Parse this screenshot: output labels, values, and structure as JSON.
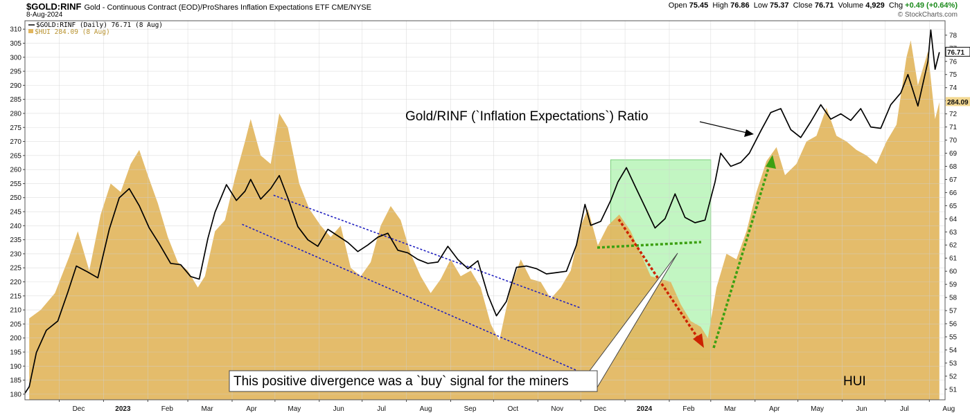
{
  "header": {
    "symbol": "$GOLD:RINF",
    "description": "Gold - Continuous Contract (EOD)/ProShares Inflation Expectations ETF  CME/NYSE",
    "date": "8-Aug-2024",
    "open_label": "Open",
    "open": "75.45",
    "high_label": "High",
    "high": "76.86",
    "low_label": "Low",
    "low": "75.37",
    "close_label": "Close",
    "close": "76.71",
    "volume_label": "Volume",
    "volume": "4,929",
    "chg_label": "Chg",
    "chg": "+0.49 (+0.64%)",
    "brand": "© StockCharts.com"
  },
  "legend": {
    "ratio": "$GOLD:RINF (Daily) 76.71 (8 Aug)",
    "hui": "$HUI 284.09 (8 Aug)"
  },
  "colors": {
    "hui_fill": "#E2B65E",
    "ratio_line": "#000000",
    "channel": "#2020C0",
    "green_box": "#90EE90",
    "green_arrow": "#3CA012",
    "red_arrow": "#CC2200"
  },
  "annotations": {
    "ratio_label": "Gold/RINF (`Inflation Expectations`) Ratio",
    "divergence_label": "This positive divergence was a `buy` signal for the miners",
    "hui_label": "HUI"
  },
  "chart_data": {
    "type": "area",
    "x_tick_labels": [
      "Dec",
      "2023",
      "Feb",
      "Mar",
      "Apr",
      "May",
      "Jun",
      "Jul",
      "Aug",
      "Sep",
      "Oct",
      "Nov",
      "Dec",
      "2024",
      "Feb",
      "Mar",
      "Apr",
      "May",
      "Jun",
      "Jul",
      "Aug"
    ],
    "x_tick_dates": [
      "2022-12-01",
      "2023-01-01",
      "2023-02-01",
      "2023-03-01",
      "2023-04-01",
      "2023-05-01",
      "2023-06-01",
      "2023-07-01",
      "2023-08-01",
      "2023-09-01",
      "2023-10-01",
      "2023-11-01",
      "2023-12-01",
      "2024-01-01",
      "2024-02-01",
      "2024-03-01",
      "2024-04-01",
      "2024-05-01",
      "2024-06-01",
      "2024-07-01",
      "2024-08-01"
    ],
    "x_range": [
      "2022-11-07",
      "2024-08-12"
    ],
    "left_axis": {
      "series": "$HUI",
      "ylim": [
        178,
        313
      ],
      "ticks": [
        180,
        185,
        190,
        195,
        200,
        205,
        210,
        215,
        220,
        225,
        230,
        235,
        240,
        245,
        250,
        255,
        260,
        265,
        270,
        275,
        280,
        285,
        290,
        295,
        300,
        305,
        310
      ]
    },
    "right_axis": {
      "series": "$GOLD:RINF",
      "ylim": [
        50.2,
        79.1
      ],
      "ticks": [
        51,
        52,
        53,
        54,
        55,
        56,
        57,
        58,
        59,
        60,
        61,
        62,
        63,
        64,
        65,
        66,
        67,
        68,
        69,
        70,
        71,
        72,
        73,
        74,
        75,
        76,
        77,
        78
      ]
    },
    "last_values": {
      "ratio": "76.71",
      "hui": "284.09"
    },
    "series": [
      {
        "name": "$HUI",
        "axis": "left",
        "points": [
          [
            "2022-11-10",
            207
          ],
          [
            "2022-11-18",
            210
          ],
          [
            "2022-11-28",
            216
          ],
          [
            "2022-12-08",
            229
          ],
          [
            "2022-12-14",
            238
          ],
          [
            "2022-12-22",
            224
          ],
          [
            "2022-12-30",
            244
          ],
          [
            "2023-01-06",
            255
          ],
          [
            "2023-01-13",
            252
          ],
          [
            "2023-01-20",
            262
          ],
          [
            "2023-01-26",
            267
          ],
          [
            "2023-02-01",
            258
          ],
          [
            "2023-02-08",
            248
          ],
          [
            "2023-02-15",
            236
          ],
          [
            "2023-02-22",
            227
          ],
          [
            "2023-03-01",
            224
          ],
          [
            "2023-03-08",
            218
          ],
          [
            "2023-03-13",
            222
          ],
          [
            "2023-03-20",
            238
          ],
          [
            "2023-03-27",
            242
          ],
          [
            "2023-04-03",
            257
          ],
          [
            "2023-04-10",
            270
          ],
          [
            "2023-04-14",
            278
          ],
          [
            "2023-04-21",
            265
          ],
          [
            "2023-04-28",
            262
          ],
          [
            "2023-05-04",
            280
          ],
          [
            "2023-05-10",
            275
          ],
          [
            "2023-05-18",
            255
          ],
          [
            "2023-05-25",
            246
          ],
          [
            "2023-06-02",
            240
          ],
          [
            "2023-06-09",
            236
          ],
          [
            "2023-06-16",
            240
          ],
          [
            "2023-06-23",
            225
          ],
          [
            "2023-06-30",
            222
          ],
          [
            "2023-07-07",
            227
          ],
          [
            "2023-07-14",
            240
          ],
          [
            "2023-07-21",
            247
          ],
          [
            "2023-07-28",
            242
          ],
          [
            "2023-08-04",
            230
          ],
          [
            "2023-08-11",
            222
          ],
          [
            "2023-08-18",
            216
          ],
          [
            "2023-08-25",
            221
          ],
          [
            "2023-09-01",
            228
          ],
          [
            "2023-09-08",
            222
          ],
          [
            "2023-09-15",
            224
          ],
          [
            "2023-09-22",
            218
          ],
          [
            "2023-09-29",
            205
          ],
          [
            "2023-10-05",
            199
          ],
          [
            "2023-10-13",
            218
          ],
          [
            "2023-10-20",
            228
          ],
          [
            "2023-10-27",
            221
          ],
          [
            "2023-11-03",
            220
          ],
          [
            "2023-11-10",
            214
          ],
          [
            "2023-11-17",
            218
          ],
          [
            "2023-11-24",
            224
          ],
          [
            "2023-12-01",
            240
          ],
          [
            "2023-12-06",
            246
          ],
          [
            "2023-12-13",
            233
          ],
          [
            "2023-12-20",
            240
          ],
          [
            "2023-12-28",
            244
          ],
          [
            "2024-01-05",
            238
          ],
          [
            "2024-01-12",
            230
          ],
          [
            "2024-01-19",
            222
          ],
          [
            "2024-01-26",
            221
          ],
          [
            "2024-02-02",
            220
          ],
          [
            "2024-02-09",
            212
          ],
          [
            "2024-02-16",
            206
          ],
          [
            "2024-02-23",
            204
          ],
          [
            "2024-02-28",
            200
          ],
          [
            "2024-03-05",
            218
          ],
          [
            "2024-03-12",
            230
          ],
          [
            "2024-03-19",
            228
          ],
          [
            "2024-03-26",
            238
          ],
          [
            "2024-04-02",
            252
          ],
          [
            "2024-04-09",
            263
          ],
          [
            "2024-04-16",
            268
          ],
          [
            "2024-04-22",
            258
          ],
          [
            "2024-04-30",
            262
          ],
          [
            "2024-05-07",
            270
          ],
          [
            "2024-05-14",
            272
          ],
          [
            "2024-05-21",
            282
          ],
          [
            "2024-05-28",
            272
          ],
          [
            "2024-06-04",
            270
          ],
          [
            "2024-06-11",
            267
          ],
          [
            "2024-06-18",
            265
          ],
          [
            "2024-06-25",
            262
          ],
          [
            "2024-07-02",
            270
          ],
          [
            "2024-07-09",
            276
          ],
          [
            "2024-07-16",
            300
          ],
          [
            "2024-07-19",
            306
          ],
          [
            "2024-07-24",
            290
          ],
          [
            "2024-07-31",
            302
          ],
          [
            "2024-08-05",
            278
          ],
          [
            "2024-08-08",
            284
          ]
        ]
      },
      {
        "name": "$GOLD:RINF",
        "axis": "right",
        "points": [
          [
            "2022-11-07",
            50.7
          ],
          [
            "2022-11-10",
            51.2
          ],
          [
            "2022-11-15",
            53.8
          ],
          [
            "2022-11-22",
            55.5
          ],
          [
            "2022-11-30",
            56.2
          ],
          [
            "2022-12-07",
            58.4
          ],
          [
            "2022-12-13",
            60.4
          ],
          [
            "2022-12-20",
            60.0
          ],
          [
            "2022-12-28",
            59.5
          ],
          [
            "2023-01-05",
            63.2
          ],
          [
            "2023-01-12",
            65.6
          ],
          [
            "2023-01-19",
            66.3
          ],
          [
            "2023-01-26",
            65.0
          ],
          [
            "2023-02-02",
            63.3
          ],
          [
            "2023-02-09",
            62.1
          ],
          [
            "2023-02-17",
            60.6
          ],
          [
            "2023-02-24",
            60.5
          ],
          [
            "2023-03-03",
            59.6
          ],
          [
            "2023-03-09",
            59.4
          ],
          [
            "2023-03-15",
            62.5
          ],
          [
            "2023-03-20",
            64.5
          ],
          [
            "2023-03-28",
            66.6
          ],
          [
            "2023-04-04",
            65.4
          ],
          [
            "2023-04-10",
            66.1
          ],
          [
            "2023-04-14",
            67.0
          ],
          [
            "2023-04-21",
            65.5
          ],
          [
            "2023-04-28",
            66.3
          ],
          [
            "2023-05-04",
            67.3
          ],
          [
            "2023-05-10",
            65.6
          ],
          [
            "2023-05-17",
            63.4
          ],
          [
            "2023-05-24",
            62.4
          ],
          [
            "2023-05-31",
            61.9
          ],
          [
            "2023-06-07",
            63.2
          ],
          [
            "2023-06-14",
            62.7
          ],
          [
            "2023-06-21",
            62.2
          ],
          [
            "2023-06-28",
            61.5
          ],
          [
            "2023-07-05",
            62.0
          ],
          [
            "2023-07-12",
            62.6
          ],
          [
            "2023-07-19",
            62.9
          ],
          [
            "2023-07-26",
            61.6
          ],
          [
            "2023-08-02",
            61.4
          ],
          [
            "2023-08-09",
            60.9
          ],
          [
            "2023-08-16",
            60.6
          ],
          [
            "2023-08-23",
            60.7
          ],
          [
            "2023-08-30",
            61.9
          ],
          [
            "2023-09-06",
            60.9
          ],
          [
            "2023-09-13",
            60.2
          ],
          [
            "2023-09-20",
            60.8
          ],
          [
            "2023-09-27",
            58.2
          ],
          [
            "2023-10-03",
            56.6
          ],
          [
            "2023-10-10",
            57.7
          ],
          [
            "2023-10-17",
            60.3
          ],
          [
            "2023-10-24",
            60.4
          ],
          [
            "2023-10-31",
            60.2
          ],
          [
            "2023-11-07",
            59.8
          ],
          [
            "2023-11-14",
            59.9
          ],
          [
            "2023-11-21",
            60.0
          ],
          [
            "2023-11-28",
            62.0
          ],
          [
            "2023-12-04",
            65.1
          ],
          [
            "2023-12-08",
            63.5
          ],
          [
            "2023-12-15",
            63.8
          ],
          [
            "2023-12-22",
            65.4
          ],
          [
            "2023-12-27",
            66.8
          ],
          [
            "2024-01-02",
            67.9
          ],
          [
            "2024-01-08",
            66.5
          ],
          [
            "2024-01-15",
            64.9
          ],
          [
            "2024-01-22",
            63.3
          ],
          [
            "2024-01-29",
            64.0
          ],
          [
            "2024-02-05",
            65.9
          ],
          [
            "2024-02-12",
            64.1
          ],
          [
            "2024-02-19",
            63.7
          ],
          [
            "2024-02-26",
            63.9
          ],
          [
            "2024-03-04",
            66.8
          ],
          [
            "2024-03-08",
            69.0
          ],
          [
            "2024-03-15",
            68.0
          ],
          [
            "2024-03-22",
            68.3
          ],
          [
            "2024-03-28",
            69.0
          ],
          [
            "2024-04-05",
            70.7
          ],
          [
            "2024-04-12",
            72.1
          ],
          [
            "2024-04-19",
            72.4
          ],
          [
            "2024-04-26",
            70.8
          ],
          [
            "2024-05-03",
            70.2
          ],
          [
            "2024-05-10",
            71.4
          ],
          [
            "2024-05-17",
            72.7
          ],
          [
            "2024-05-24",
            71.6
          ],
          [
            "2024-05-31",
            72.0
          ],
          [
            "2024-06-07",
            71.5
          ],
          [
            "2024-06-14",
            72.4
          ],
          [
            "2024-06-21",
            71.0
          ],
          [
            "2024-06-28",
            70.9
          ],
          [
            "2024-07-05",
            72.7
          ],
          [
            "2024-07-12",
            73.6
          ],
          [
            "2024-07-17",
            75.0
          ],
          [
            "2024-07-24",
            72.6
          ],
          [
            "2024-07-31",
            76.0
          ],
          [
            "2024-08-02",
            78.4
          ],
          [
            "2024-08-05",
            75.4
          ],
          [
            "2024-08-08",
            76.7
          ]
        ]
      }
    ],
    "channel_lines": [
      {
        "from": [
          "2023-04-30",
          65.8
        ],
        "to": [
          "2023-12-01",
          57.2
        ]
      },
      {
        "from": [
          "2023-04-08",
          240.5
        ],
        "to": [
          "2023-11-28",
          188.5
        ]
      }
    ],
    "highlight_box": {
      "from": "2023-12-22",
      "to": "2024-03-01",
      "ratio_range": [
        53.3,
        68.5
      ]
    }
  }
}
